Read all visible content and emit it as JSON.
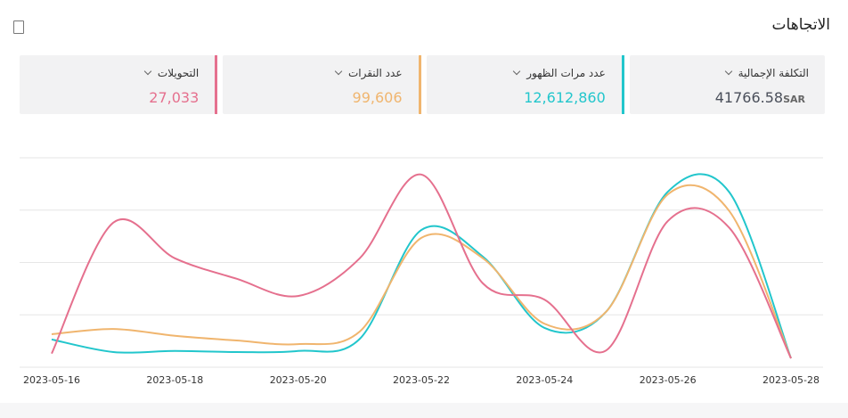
{
  "header": {
    "title": "الاتجاهات"
  },
  "cards": [
    {
      "label": "التكلفة الإجمالية",
      "value": "41766.58",
      "unit": "SAR",
      "color": "#4a4f5a",
      "accent": null
    },
    {
      "label": "عدد مرات الظهور",
      "value": "12,612,860",
      "color": "#22c6cc",
      "accent": "#22c6cc"
    },
    {
      "label": "عدد النقرات",
      "value": "99,606",
      "color": "#f0b56e",
      "accent": "#f0b56e"
    },
    {
      "label": "التحويلات",
      "value": "27,033",
      "color": "#e5708e",
      "accent": "#e5708e"
    }
  ],
  "chart_data": {
    "type": "line",
    "x": [
      "2023-05-16",
      null,
      "2023-05-18",
      null,
      "2023-05-20",
      null,
      "2023-05-22",
      null,
      "2023-05-24",
      null,
      "2023-05-26",
      null,
      "2023-05-28"
    ],
    "ylim": [
      0,
      4
    ],
    "yticks": [
      0,
      1,
      2,
      3,
      4
    ],
    "grid": true,
    "series": [
      {
        "color": "#22c6cc",
        "values": [
          0.53,
          0.29,
          0.31,
          0.29,
          0.31,
          0.54,
          2.62,
          2.11,
          0.75,
          1.06,
          3.35,
          3.34,
          0.17
        ]
      },
      {
        "color": "#f0b56e",
        "values": [
          0.63,
          0.73,
          0.6,
          0.51,
          0.44,
          0.68,
          2.47,
          2.08,
          0.83,
          1.06,
          3.3,
          2.98,
          0.17
        ]
      },
      {
        "color": "#e5708e",
        "values": [
          0.26,
          2.76,
          2.08,
          1.69,
          1.36,
          2.08,
          3.68,
          1.6,
          1.29,
          0.32,
          2.79,
          2.66,
          0.17
        ]
      }
    ]
  }
}
